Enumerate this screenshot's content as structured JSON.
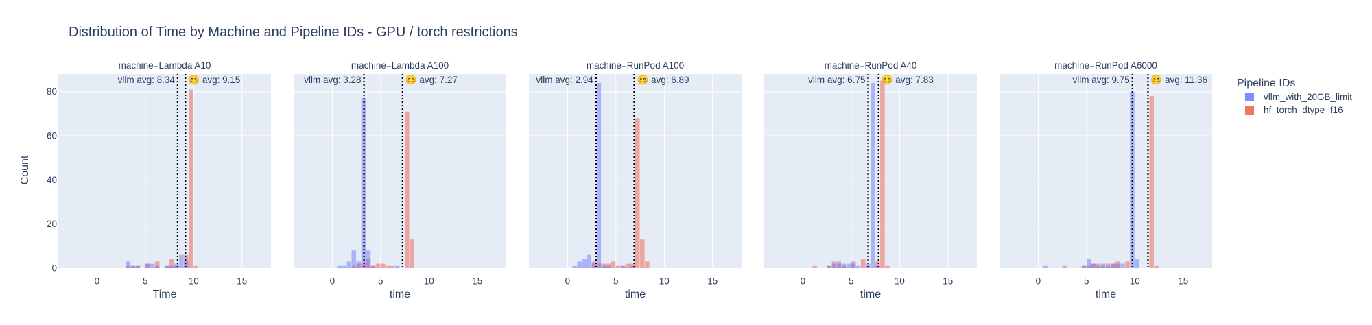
{
  "chart_data": {
    "type": "histogram",
    "title": "Distribution of Time by Machine and Pipeline IDs - GPU / torch restrictions",
    "ylabel": "Count",
    "ylim": [
      0,
      88
    ],
    "xlim": [
      -4,
      18
    ],
    "x_ticks": [
      0,
      5,
      10,
      15
    ],
    "y_ticks": [
      0,
      20,
      40,
      60,
      80
    ],
    "bin_width": 0.5,
    "grid": true,
    "legend": {
      "title": "Pipeline IDs",
      "placement": "right",
      "entries": [
        {
          "name": "vllm_with_20GB_limit",
          "color": "#636efa"
        },
        {
          "name": "hf_torch_dtype_f16",
          "color": "#ef553b"
        }
      ]
    },
    "panels": [
      {
        "subtitle": "machine=Lambda A10",
        "xlabel": "Time",
        "avg_vllm": 8.34,
        "avg_hf": 9.15,
        "vllm_label": "vllm avg: 8.34",
        "hf_label": "😊 avg: 9.15",
        "vllm_bins": [
          [
            3,
            3
          ],
          [
            3.5,
            1
          ],
          [
            4,
            1
          ],
          [
            5,
            2
          ],
          [
            5.5,
            2
          ],
          [
            6,
            1
          ],
          [
            7,
            1
          ],
          [
            7.5,
            1
          ],
          [
            8,
            2
          ],
          [
            8.5,
            6
          ],
          [
            9,
            3
          ]
        ],
        "hf_bins": [
          [
            3,
            1
          ],
          [
            3.5,
            1
          ],
          [
            4,
            1
          ],
          [
            5,
            2
          ],
          [
            6,
            3
          ],
          [
            7,
            1
          ],
          [
            7.5,
            4
          ],
          [
            8,
            1
          ],
          [
            9,
            6
          ],
          [
            9.5,
            81
          ],
          [
            10,
            1
          ]
        ]
      },
      {
        "subtitle": "machine=Lambda A100",
        "xlabel": "time",
        "avg_vllm": 3.28,
        "avg_hf": 7.27,
        "vllm_label": "vllm avg: 3.28",
        "hf_label": "😊 avg: 7.27",
        "vllm_bins": [
          [
            0.5,
            1
          ],
          [
            1,
            1
          ],
          [
            1.5,
            3
          ],
          [
            2,
            8
          ],
          [
            2.5,
            3
          ],
          [
            3,
            77
          ],
          [
            3.5,
            8
          ],
          [
            4,
            1
          ],
          [
            6.5,
            1
          ]
        ],
        "hf_bins": [
          [
            2,
            1
          ],
          [
            2.5,
            2
          ],
          [
            3,
            2
          ],
          [
            3.5,
            4
          ],
          [
            4,
            1
          ],
          [
            4.5,
            2
          ],
          [
            5,
            2
          ],
          [
            5.5,
            1
          ],
          [
            6,
            1
          ],
          [
            7.5,
            71
          ],
          [
            8,
            13
          ]
        ]
      },
      {
        "subtitle": "machine=RunPod A100",
        "xlabel": "time",
        "avg_vllm": 2.94,
        "avg_hf": 6.89,
        "vllm_label": "vllm avg: 2.94",
        "hf_label": "😊 avg: 6.89",
        "vllm_bins": [
          [
            0.5,
            1
          ],
          [
            1,
            3
          ],
          [
            1.5,
            4
          ],
          [
            2,
            6
          ],
          [
            2.5,
            2
          ],
          [
            3,
            84
          ],
          [
            3.5,
            1
          ],
          [
            4,
            1
          ],
          [
            5.5,
            1
          ],
          [
            6.5,
            1
          ]
        ],
        "hf_bins": [
          [
            2.5,
            3
          ],
          [
            3,
            2
          ],
          [
            3.5,
            2
          ],
          [
            4,
            2
          ],
          [
            4.5,
            3
          ],
          [
            5,
            1
          ],
          [
            5.5,
            1
          ],
          [
            6,
            2
          ],
          [
            6.5,
            2
          ],
          [
            7,
            68
          ],
          [
            7.5,
            13
          ],
          [
            8,
            3
          ]
        ]
      },
      {
        "subtitle": "machine=RunPod A40",
        "xlabel": "time",
        "avg_vllm": 6.75,
        "avg_hf": 7.83,
        "vllm_label": "vllm avg: 6.75",
        "hf_label": "😊 avg: 7.83",
        "vllm_bins": [
          [
            2.5,
            1
          ],
          [
            3,
            2
          ],
          [
            3.5,
            3
          ],
          [
            4,
            2
          ],
          [
            4.5,
            2
          ],
          [
            5,
            3
          ],
          [
            5.5,
            1
          ],
          [
            6.5,
            2
          ],
          [
            7,
            84
          ],
          [
            7.5,
            1
          ]
        ],
        "hf_bins": [
          [
            1,
            1
          ],
          [
            2.5,
            1
          ],
          [
            3,
            3
          ],
          [
            3.5,
            2
          ],
          [
            4,
            1
          ],
          [
            5,
            2
          ],
          [
            6,
            4
          ],
          [
            6.5,
            1
          ],
          [
            7.5,
            3
          ],
          [
            8,
            85
          ],
          [
            8.5,
            1
          ]
        ]
      },
      {
        "subtitle": "machine=RunPod A6000",
        "xlabel": "time",
        "avg_vllm": 9.75,
        "avg_hf": 11.36,
        "vllm_label": "vllm avg: 9.75",
        "hf_label": "😊 avg: 11.36",
        "vllm_bins": [
          [
            0.5,
            1
          ],
          [
            4.5,
            1
          ],
          [
            5,
            4
          ],
          [
            5.5,
            2
          ],
          [
            6,
            1
          ],
          [
            6.5,
            2
          ],
          [
            7,
            1
          ],
          [
            7.5,
            2
          ],
          [
            8,
            2
          ],
          [
            8.5,
            2
          ],
          [
            9.5,
            80
          ],
          [
            10,
            4
          ]
        ],
        "hf_bins": [
          [
            2.5,
            1
          ],
          [
            4.5,
            1
          ],
          [
            5,
            1
          ],
          [
            5.5,
            2
          ],
          [
            6,
            2
          ],
          [
            6.5,
            1
          ],
          [
            7,
            2
          ],
          [
            7.5,
            2
          ],
          [
            8,
            3
          ],
          [
            9,
            3
          ],
          [
            11.5,
            78
          ],
          [
            12,
            1
          ]
        ]
      }
    ]
  }
}
